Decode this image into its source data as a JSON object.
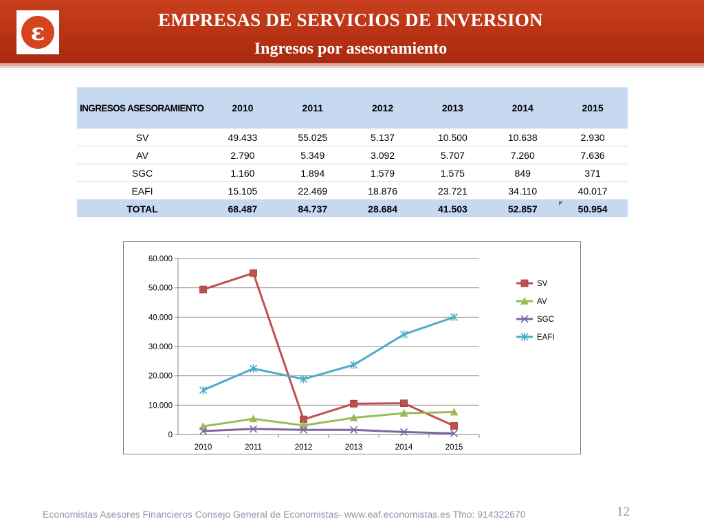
{
  "header": {
    "title": "EMPRESAS DE SERVICIOS DE INVERSION",
    "subtitle": "Ingresos por asesoramiento",
    "logo_icon": "eaf-logo-icon",
    "brand_color": "#b83214"
  },
  "table": {
    "header_label": "INGRESOS ASESORAMIENTO",
    "columns": [
      "2010",
      "2011",
      "2012",
      "2013",
      "2014",
      "2015"
    ],
    "rows": [
      {
        "label": "SV",
        "values": [
          "49.433",
          "55.025",
          "5.137",
          "10.500",
          "10.638",
          "2.930"
        ]
      },
      {
        "label": "AV",
        "values": [
          "2.790",
          "5.349",
          "3.092",
          "5.707",
          "7.260",
          "7.636"
        ]
      },
      {
        "label": "SGC",
        "values": [
          "1.160",
          "1.894",
          "1.579",
          "1.575",
          "849",
          "371"
        ]
      },
      {
        "label": "EAFI",
        "values": [
          "15.105",
          "22.469",
          "18.876",
          "23.721",
          "34.110",
          "40.017"
        ]
      }
    ],
    "total": {
      "label": "TOTAL",
      "values": [
        "68.487",
        "84.737",
        "28.684",
        "41.503",
        "52.857",
        "50.954"
      ]
    }
  },
  "chart_data": {
    "type": "line",
    "x": [
      "2010",
      "2011",
      "2012",
      "2013",
      "2014",
      "2015"
    ],
    "y_ticks": [
      "0",
      "10.000",
      "20.000",
      "30.000",
      "40.000",
      "50.000",
      "60.000"
    ],
    "ylim": [
      0,
      60000
    ],
    "grid": true,
    "legend_position": "right",
    "series": [
      {
        "name": "SV",
        "values": [
          49433,
          55025,
          5137,
          10500,
          10638,
          2930
        ],
        "color": "#c0504d",
        "marker": "square"
      },
      {
        "name": "AV",
        "values": [
          2790,
          5349,
          3092,
          5707,
          7260,
          7636
        ],
        "color": "#9bbb59",
        "marker": "triangle"
      },
      {
        "name": "SGC",
        "values": [
          1160,
          1894,
          1579,
          1575,
          849,
          371
        ],
        "color": "#8064a2",
        "marker": "x"
      },
      {
        "name": "EAFI",
        "values": [
          15105,
          22469,
          18876,
          23721,
          34110,
          40017
        ],
        "color": "#4bacc6",
        "marker": "star"
      }
    ]
  },
  "footer": {
    "text": "Economistas Asesores Financieros Consejo General de Economistas- www.eaf.economistas.es Tfno: 914322670",
    "page_number": "12"
  }
}
